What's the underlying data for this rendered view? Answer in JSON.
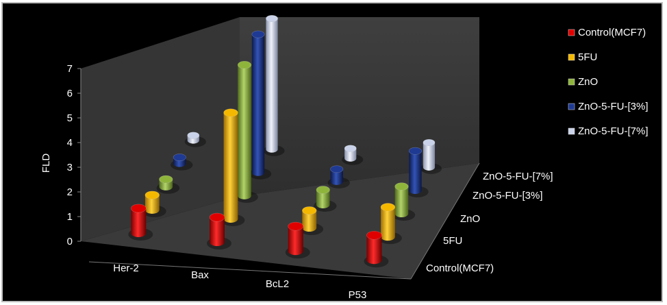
{
  "chart_data": {
    "type": "bar",
    "subtype": "3d-cylinder",
    "title": "",
    "ylabel": "FLD",
    "ylim": [
      0,
      7
    ],
    "yticks": [
      "0",
      "1",
      "2",
      "3",
      "4",
      "5",
      "6",
      "7"
    ],
    "categories": [
      "Her-2",
      "Bax",
      "BcL2",
      "P53"
    ],
    "depth_labels": [
      "Control(MCF7)",
      "5FU",
      "ZnO",
      "ZnO-5-FU-[3%]",
      "ZnO-5-FU-[7%]"
    ],
    "series": [
      {
        "name": "Control(MCF7)",
        "color": "#e00000",
        "values": [
          1,
          1,
          1,
          1
        ]
      },
      {
        "name": "5FU",
        "color": "#f5b800",
        "values": [
          0.6,
          4.3,
          0.7,
          1.2
        ]
      },
      {
        "name": "ZnO",
        "color": "#8fb43c",
        "values": [
          0.3,
          5.3,
          0.6,
          1.1
        ]
      },
      {
        "name": "ZnO-5-FU-[3%]",
        "color": "#1f3a93",
        "values": [
          0.25,
          5.6,
          0.5,
          1.6
        ]
      },
      {
        "name": "ZnO-5-FU-[7%]",
        "color": "#c9d2e8",
        "values": [
          0.2,
          5.3,
          0.4,
          1.0
        ]
      }
    ],
    "legend_position": "right",
    "grid": false
  },
  "legend": {
    "title": "",
    "items": [
      "Control(MCF7)",
      "5FU",
      "ZnO",
      "ZnO-5-FU-[3%]",
      "ZnO-5-FU-[7%]"
    ]
  }
}
